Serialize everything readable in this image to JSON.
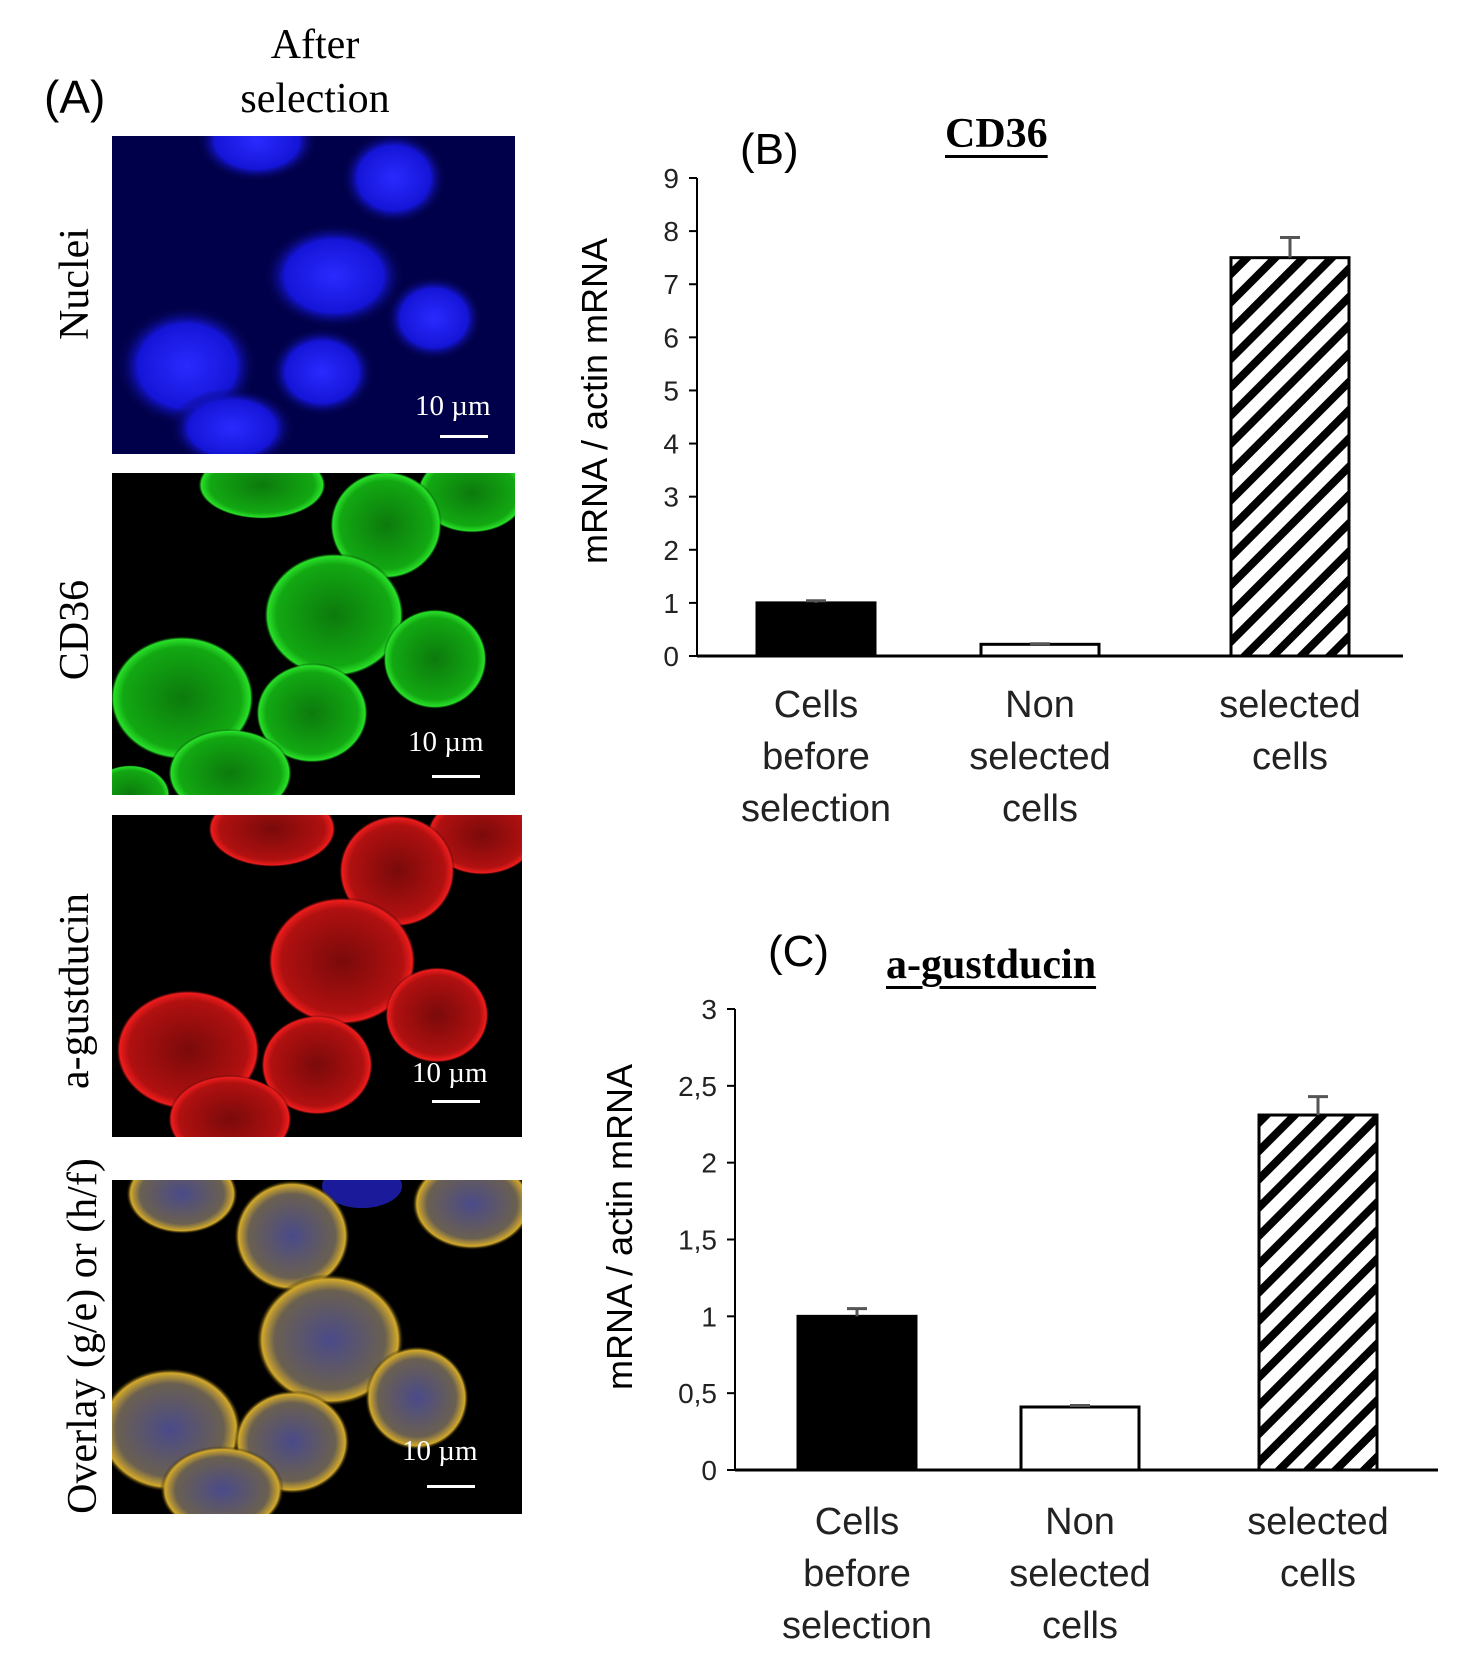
{
  "panel_a": {
    "label": "(A)",
    "column_header": "After\nselection",
    "rows": [
      {
        "label": "Nuclei",
        "scale_bar": "10 µm",
        "color": "#1a1aff"
      },
      {
        "label": "CD36",
        "scale_bar": "10 µm",
        "color": "#19c819"
      },
      {
        "label": "a-gustducin",
        "scale_bar": "10 µm",
        "color": "#e01414"
      },
      {
        "label": "Overlay (g/e) or (h/f)",
        "scale_bar": "10 µm",
        "color": "#c8a030"
      }
    ]
  },
  "chart_data": [
    {
      "panel_label": "(B)",
      "type": "bar",
      "title": "CD36",
      "ylabel": "mRNA / actin mRNA",
      "ylim": [
        0,
        9
      ],
      "yticks": [
        "0",
        "1",
        "2",
        "3",
        "4",
        "5",
        "6",
        "7",
        "8",
        "9"
      ],
      "categories": [
        "Cells\nbefore\nselection",
        "Non\nselected\ncells",
        "selected\ncells"
      ],
      "values": [
        1.0,
        0.22,
        7.5
      ],
      "errors": [
        0.04,
        0.01,
        0.38
      ],
      "fills": [
        "solid",
        "white",
        "hatched"
      ],
      "grid": false
    },
    {
      "panel_label": "(C)",
      "type": "bar",
      "title": "a-gustducin",
      "ylabel": "mRNA / actin mRNA",
      "ylim": [
        0,
        3
      ],
      "yticks": [
        "0",
        "0,5",
        "1",
        "1,5",
        "2",
        "2,5",
        "3"
      ],
      "categories": [
        "Cells\nbefore\nselection",
        "Non\nselected\ncells",
        "selected\ncells"
      ],
      "values": [
        1.0,
        0.41,
        2.31
      ],
      "errors": [
        0.05,
        0.01,
        0.12
      ],
      "fills": [
        "solid",
        "white",
        "hatched"
      ],
      "grid": false
    }
  ]
}
